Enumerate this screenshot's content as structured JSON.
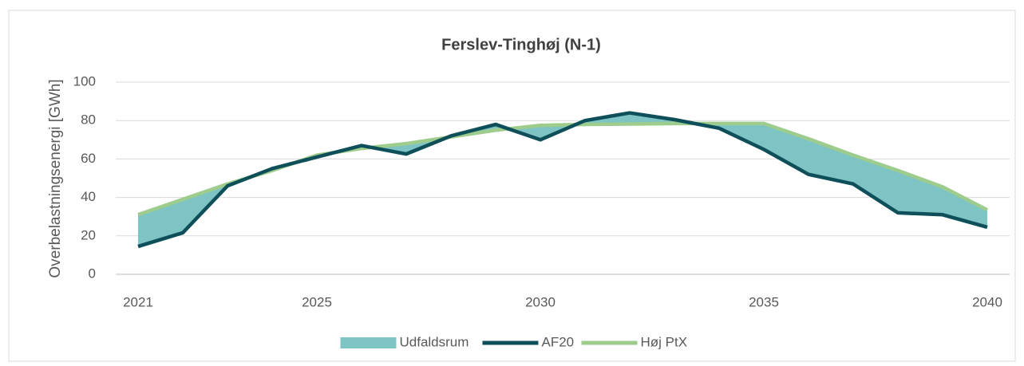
{
  "chart_data": {
    "type": "line",
    "title": "Ferslev-Tinghøj (N-1)",
    "ylabel": "Overbelastningsenergi [GWh]",
    "x": [
      2021,
      2022,
      2023,
      2024,
      2025,
      2026,
      2027,
      2028,
      2029,
      2030,
      2031,
      2032,
      2033,
      2034,
      2035,
      2036,
      2037,
      2038,
      2039,
      2040
    ],
    "xlim": [
      2020.5,
      2040.5
    ],
    "xticks": [
      2021,
      2025,
      2030,
      2035,
      2040
    ],
    "ylim": [
      0,
      100
    ],
    "yticks": [
      0,
      20,
      40,
      60,
      80,
      100
    ],
    "grid": true,
    "legend": "bottom",
    "series": [
      {
        "name": "Udfaldsrum",
        "color": "#7fc4c4",
        "type": "band"
      },
      {
        "name": "AF20",
        "color": "#0e4f5a",
        "values": [
          14.5,
          21.6,
          46,
          55,
          61,
          67,
          62.6,
          72,
          78,
          70,
          80,
          84,
          80.5,
          76,
          65,
          52,
          47,
          32,
          31,
          24.5
        ]
      },
      {
        "name": "Høj PtX",
        "color": "#9dcc8c",
        "values": [
          31,
          39,
          47,
          54,
          62,
          65.5,
          68,
          71.5,
          75,
          77.5,
          78,
          78.2,
          78.5,
          78.5,
          78.5,
          70.5,
          62,
          54,
          45.5,
          33.5
        ]
      }
    ]
  }
}
